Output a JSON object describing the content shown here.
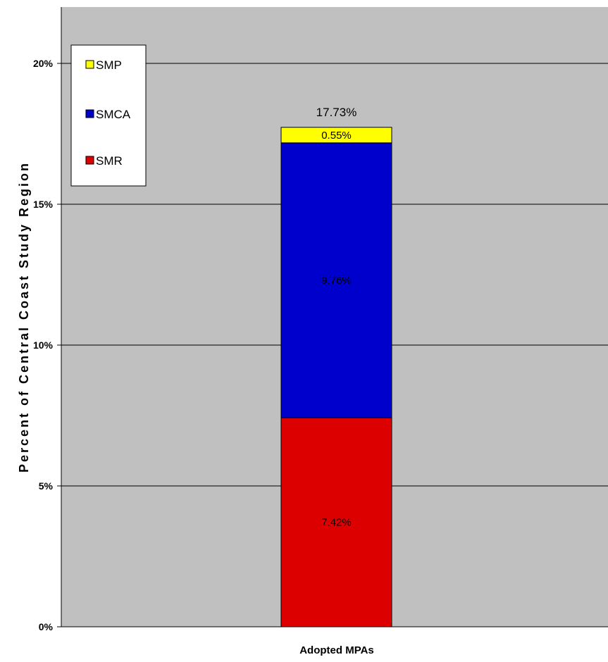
{
  "chart_data": {
    "type": "bar",
    "stacked": true,
    "categories": [
      "Adopted MPAs"
    ],
    "series": [
      {
        "name": "SMR",
        "values": [
          7.42
        ],
        "label": "7.42%",
        "color": "#dd0000"
      },
      {
        "name": "SMCA",
        "values": [
          9.76
        ],
        "label": "9.76%",
        "color": "#0000cc"
      },
      {
        "name": "SMP",
        "values": [
          0.55
        ],
        "label": "0.55%",
        "color": "#ffff00"
      }
    ],
    "total_label": "17.73%",
    "ylabel": "Percent of Central Coast Study Region",
    "xlabel": "",
    "ylim": [
      0,
      22
    ],
    "yticks": [
      0,
      5,
      10,
      15,
      20
    ],
    "ytick_labels": [
      "0%",
      "5%",
      "10%",
      "15%",
      "20%"
    ],
    "grid": true,
    "legend_position": "top-left",
    "legend_order": [
      "SMP",
      "SMCA",
      "SMR"
    ],
    "plot_background": "#c0c0c0"
  }
}
